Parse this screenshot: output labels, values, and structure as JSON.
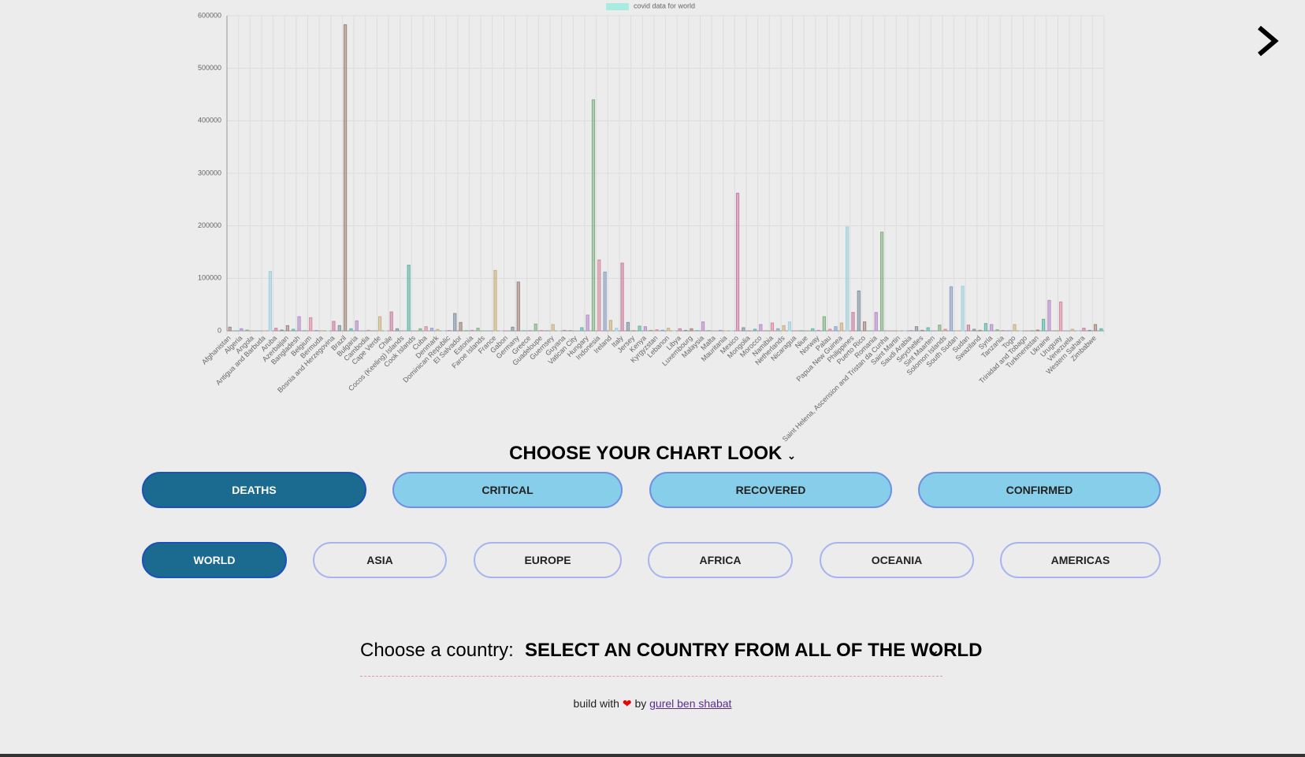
{
  "chart_data": {
    "type": "bar",
    "legend": "covid data for world",
    "legend_color": "#a8ecdf",
    "colors": [
      "#a0827d",
      "#5bb5a8",
      "#b58ac8",
      "#7fb07f",
      "#d58aa0",
      "#8a9fc8",
      "#c8b07f",
      "#9fd0e0",
      "#c87f9f",
      "#7f8fa0"
    ],
    "categories": [
      "Afghanistan",
      null,
      "Algeria",
      null,
      "Angola",
      null,
      "Antigua and Barbuda",
      null,
      "Aruba",
      null,
      "Azerbaijan",
      null,
      "Bangladesh",
      null,
      "Belgium",
      null,
      "Bermuda",
      null,
      "Bosnia and Herzegovina",
      null,
      "Brazil",
      null,
      "Bulgaria",
      null,
      "Cambodia",
      null,
      "Cape Verde",
      null,
      "Chile",
      null,
      "Cocos (Keeling) Islands",
      null,
      "Cook Islands",
      null,
      "Cuba",
      null,
      "Denmark",
      null,
      "Dominican Republic",
      null,
      "El Salvador",
      null,
      "Estonia",
      null,
      "Faroe Islands",
      null,
      "France",
      null,
      "Gabon",
      null,
      "Germany",
      null,
      "Greece",
      null,
      "Guadeloupe",
      null,
      "Guernsey",
      null,
      "Guyana",
      null,
      "Vatican City",
      null,
      "Hungary",
      null,
      "Indonesia",
      null,
      "Ireland",
      null,
      "Italy",
      null,
      "Jersey",
      null,
      "Kenya",
      null,
      "Kyrgyzstan",
      null,
      "Lebanon",
      null,
      "Libya",
      null,
      "Luxembourg",
      null,
      "Malaysia",
      null,
      "Malta",
      null,
      "Mauritania",
      null,
      "Mexico",
      null,
      "Mongolia",
      null,
      "Morocco",
      null,
      "Namibia",
      null,
      "Netherlands",
      null,
      "Nicaragua",
      null,
      "Niue",
      null,
      "Norway",
      null,
      "Palau",
      null,
      "Papua New Guinea",
      null,
      "Philippines",
      null,
      "Puerto Rico",
      null,
      "Romania",
      null,
      "Saint Helena, Ascension and Tristan da Cunha",
      null,
      "Saint Martin",
      null,
      "Saudi Arabia",
      null,
      "Seychelles",
      null,
      "Sint Maarten",
      null,
      "Solomon Islands",
      null,
      "South Sudan",
      null,
      "Sudan",
      null,
      "Swaziland",
      null,
      "Syria",
      null,
      "Tanzania",
      null,
      "Togo",
      null,
      "Trinidad and Tobago",
      null,
      "Turkmenistan",
      null,
      "Ukraine",
      null,
      "Uruguay",
      null,
      "Venezuela",
      null,
      "Western Sahara",
      null,
      "Zimbabwe",
      null
    ],
    "values": [
      7000,
      100,
      4000,
      1500,
      100,
      50,
      200,
      113000,
      5000,
      1500,
      10000,
      3000,
      27000,
      400,
      25000,
      800,
      500,
      100,
      18000,
      10000,
      583000,
      4000,
      19000,
      100,
      1000,
      200,
      27000,
      100,
      36000,
      4000,
      0,
      125000,
      0,
      4000,
      8000,
      5000,
      2500,
      300,
      600,
      33000,
      16000,
      400,
      1000,
      5000,
      0,
      100,
      115000,
      300,
      100,
      7000,
      93000,
      300,
      500,
      13000,
      700,
      300,
      12000,
      100,
      900,
      400,
      0,
      6000,
      30000,
      440000,
      135000,
      112000,
      20000,
      5000,
      129000,
      16000,
      300,
      9000,
      8000,
      1000,
      2000,
      1200,
      5000,
      300,
      4000,
      900,
      4000,
      500,
      17000,
      500,
      100,
      1000,
      100,
      400,
      262000,
      6000,
      100,
      3000,
      12000,
      300,
      15000,
      4000,
      10000,
      17000,
      100,
      200,
      0,
      4000,
      1000,
      27000,
      3000,
      8000,
      15000,
      198000,
      35000,
      76000,
      17000,
      100,
      35000,
      188000,
      100,
      0,
      100,
      300,
      500,
      8000,
      1000,
      6000,
      200,
      11000,
      3000,
      84000,
      300,
      85000,
      11000,
      3000,
      1000,
      14000,
      12000,
      2000,
      700,
      300,
      12000,
      200,
      100,
      200,
      1500,
      22000,
      58000,
      200,
      55000,
      100,
      3000,
      600,
      5000,
      1000,
      12000,
      4000
    ],
    "ylim": [
      0,
      600000
    ],
    "yticks": [
      0,
      100000,
      200000,
      300000,
      400000,
      500000,
      600000
    ],
    "grid": true
  },
  "controls": {
    "heading": "CHOOSE YOUR CHART LOOK",
    "metrics": [
      "DEATHS",
      "CRITICAL",
      "RECOVERED",
      "CONFIRMED"
    ],
    "regions": [
      "WORLD",
      "ASIA",
      "EUROPE",
      "AFRICA",
      "OCEANIA",
      "AMERICAS"
    ],
    "country_label": "Choose a country:",
    "country_select": "SELECT AN COUNTRY FROM ALL OF THE WORLD"
  },
  "footer": {
    "prefix": "build with",
    "by": "by",
    "author": "gurel ben shabat"
  }
}
